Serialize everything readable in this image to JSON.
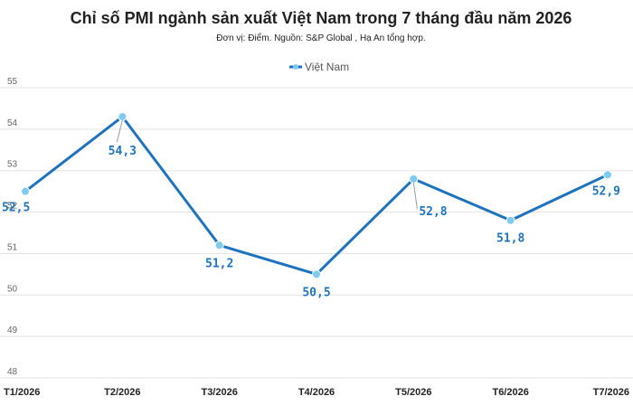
{
  "chart_data": {
    "type": "line",
    "title": "Chỉ số PMI ngành sản xuất Việt Nam trong 7 tháng đầu năm 2026",
    "subtitle": "Đơn vị: Điểm. Nguồn: S&P Global , Hạ An tổng hợp.",
    "categories": [
      "T1/2026",
      "T2/2026",
      "T3/2026",
      "T4/2026",
      "T5/2026",
      "T6/2026",
      "T7/2026"
    ],
    "series": [
      {
        "name": "Việt Nam",
        "values": [
          52.5,
          54.3,
          51.2,
          50.5,
          52.8,
          51.8,
          52.9
        ],
        "labels": [
          "52,5",
          "54,3",
          "51,2",
          "50,5",
          "52,8",
          "51,8",
          "52,9"
        ]
      }
    ],
    "ylim": [
      48,
      55
    ],
    "yticks": [
      "48",
      "49",
      "50",
      "51",
      "52",
      "53",
      "54",
      "55"
    ],
    "grid": true,
    "legend_position": "top-center",
    "colors": {
      "line": "#1e73be",
      "marker": "#7ecbf0",
      "label": "#1e73be"
    }
  }
}
